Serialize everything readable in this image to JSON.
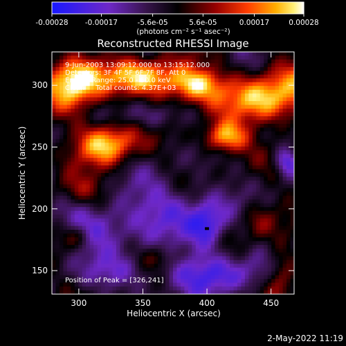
{
  "chart_data": {
    "type": "heatmap",
    "title": "Reconstructed RHESSI Image",
    "xlabel": "Heliocentric X (arcsec)",
    "ylabel": "Heliocentric Y (arcsec)",
    "xlim": [
      279,
      468
    ],
    "ylim": [
      131,
      327
    ],
    "xticks": [
      300,
      350,
      400,
      450
    ],
    "yticks": [
      150,
      200,
      250,
      300
    ],
    "colorbar": {
      "range": [
        -0.00028,
        0.00028
      ],
      "ticks": [
        "-0.00028",
        "-0.00017",
        "-5.6e-05",
        "5.6e-05",
        "0.00017",
        "0.00028"
      ],
      "tick_values": [
        -0.00028,
        -0.00017,
        -5.6e-05,
        5.6e-05,
        0.00017,
        0.00028
      ],
      "unit_label": "(photons cm⁻² s⁻¹ asec⁻²)"
    },
    "annotations": [
      "9-Jun-2003 13:09:12.000 to 13:15:12.000",
      "Detectors: 3F 4F 5F 6F 7F 8F, Att 0",
      "Energy Range: 25.0 - 50.0 keV",
      "Clean     Total counts: 4.37E+03"
    ],
    "peak_label": "Position of Peak = [326,241]",
    "peak": [
      326,
      241
    ],
    "bright_regions": [
      {
        "x": 298,
        "y": 305,
        "sx": 14,
        "sy": 15,
        "v": 0.9
      },
      {
        "x": 322,
        "y": 253,
        "sx": 16,
        "sy": 12,
        "v": 1.0
      },
      {
        "x": 350,
        "y": 306,
        "sx": 24,
        "sy": 10,
        "v": 0.8
      },
      {
        "x": 392,
        "y": 300,
        "sx": 14,
        "sy": 9,
        "v": 0.65
      },
      {
        "x": 414,
        "y": 258,
        "sx": 12,
        "sy": 9,
        "v": 1.0
      },
      {
        "x": 445,
        "y": 288,
        "sx": 22,
        "sy": 14,
        "v": 0.9
      },
      {
        "x": 300,
        "y": 215,
        "sx": 16,
        "sy": 10,
        "v": 0.45
      },
      {
        "x": 458,
        "y": 148,
        "sx": 9,
        "sy": 16,
        "v": 0.55
      },
      {
        "x": 298,
        "y": 177,
        "sx": 9,
        "sy": 7,
        "v": 0.35
      },
      {
        "x": 362,
        "y": 160,
        "sx": 9,
        "sy": 7,
        "v": 0.3
      },
      {
        "x": 440,
        "y": 190,
        "sx": 10,
        "sy": 12,
        "v": 0.35
      }
    ],
    "dark_regions": [
      {
        "x": 315,
        "y": 185,
        "sx": 18,
        "sy": 13,
        "v": -0.5
      },
      {
        "x": 365,
        "y": 200,
        "sx": 28,
        "sy": 16,
        "v": -0.45
      },
      {
        "x": 400,
        "y": 185,
        "sx": 10,
        "sy": 14,
        "v": -0.65
      },
      {
        "x": 405,
        "y": 148,
        "sx": 30,
        "sy": 12,
        "v": -0.55
      },
      {
        "x": 462,
        "y": 238,
        "sx": 6,
        "sy": 8,
        "v": -0.55
      },
      {
        "x": 360,
        "y": 275,
        "sx": 18,
        "sy": 8,
        "v": -0.35
      },
      {
        "x": 330,
        "y": 148,
        "sx": 18,
        "sy": 10,
        "v": -0.35
      }
    ]
  },
  "footer_date": "2-May-2022 11:19"
}
